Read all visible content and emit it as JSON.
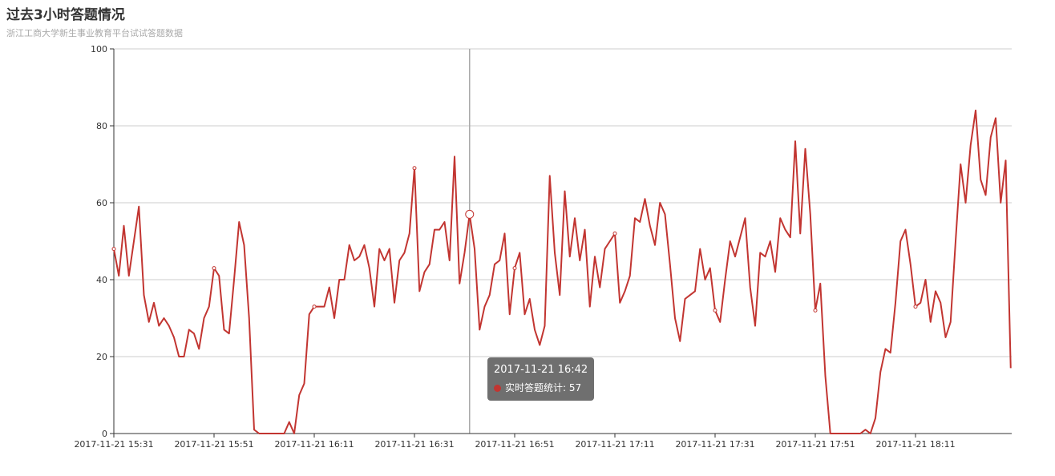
{
  "header": {
    "title": "过去3小时答题情况",
    "subtitle": "浙江工商大学新生事业教育平台试试答题数据"
  },
  "tooltip": {
    "time": "2017-11-21 16:42",
    "series_name": "实时答题统计",
    "value": "57",
    "separator": ": "
  },
  "colors": {
    "line": "#c23531",
    "grid": "#cccccc",
    "axis": "#333333"
  },
  "chart_data": {
    "type": "line",
    "title": "过去3小时答题情况",
    "subtitle": "浙江工商大学新生事业教育平台试试答题数据",
    "xlabel": "",
    "ylabel": "",
    "ylim": [
      0,
      100
    ],
    "yticks": [
      0,
      20,
      40,
      60,
      80,
      100
    ],
    "grid": "horizontal",
    "x_tick_labels": [
      "2017-11-21 15:31",
      "2017-11-21 15:51",
      "2017-11-21 16:11",
      "2017-11-21 16:31",
      "2017-11-21 16:51",
      "2017-11-21 17:11",
      "2017-11-21 17:31",
      "2017-11-21 17:51",
      "2017-11-21 18:11"
    ],
    "x_start": "2017-11-21 15:31",
    "x_interval_minutes": 1,
    "x_tick_every": 20,
    "highlight_index": 71,
    "series": [
      {
        "name": "实时答题统计",
        "values": [
          48,
          41,
          54,
          41,
          50,
          59,
          36,
          29,
          34,
          28,
          30,
          28,
          25,
          20,
          20,
          27,
          26,
          22,
          30,
          33,
          43,
          41,
          27,
          26,
          40,
          55,
          49,
          30,
          1,
          0,
          0,
          0,
          0,
          0,
          0,
          3,
          0,
          10,
          13,
          31,
          33,
          33,
          33,
          38,
          30,
          40,
          40,
          49,
          45,
          46,
          49,
          43,
          33,
          48,
          45,
          48,
          34,
          45,
          47,
          52,
          69,
          37,
          42,
          44,
          53,
          53,
          55,
          45,
          72,
          39,
          47,
          57,
          48,
          27,
          33,
          36,
          44,
          45,
          52,
          31,
          43,
          47,
          31,
          35,
          27,
          23,
          28,
          67,
          47,
          36,
          63,
          46,
          56,
          45,
          53,
          33,
          46,
          38,
          48,
          50,
          52,
          34,
          37,
          41,
          56,
          55,
          61,
          54,
          49,
          60,
          57,
          44,
          30,
          24,
          35,
          36,
          37,
          48,
          40,
          43,
          32,
          29,
          40,
          50,
          46,
          51,
          56,
          38,
          28,
          47,
          46,
          50,
          42,
          56,
          53,
          51,
          76,
          52,
          74,
          57,
          32,
          39,
          15,
          0,
          0,
          0,
          0,
          0,
          0,
          0,
          1,
          0,
          4,
          16,
          22,
          21,
          34,
          50,
          53,
          44,
          33,
          34,
          40,
          29,
          37,
          34,
          25,
          29,
          50,
          70,
          60,
          75,
          84,
          66,
          62,
          77,
          82,
          60,
          71,
          17
        ]
      }
    ]
  }
}
